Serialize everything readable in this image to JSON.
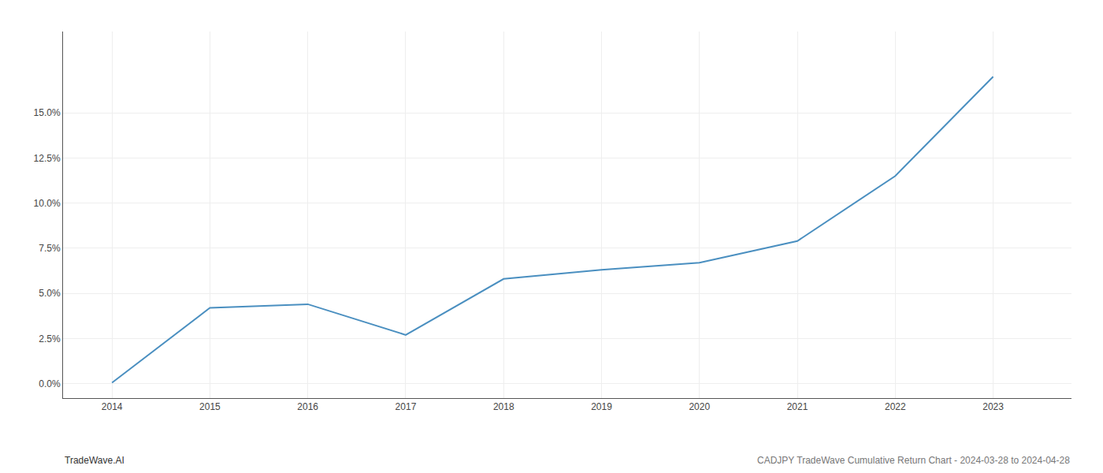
{
  "chart_data": {
    "type": "line",
    "x": [
      2014,
      2015,
      2016,
      2017,
      2018,
      2019,
      2020,
      2021,
      2022,
      2023
    ],
    "values": [
      0.05,
      4.2,
      4.4,
      2.7,
      5.8,
      6.3,
      6.7,
      7.9,
      11.5,
      17.0
    ],
    "color": "#4a8fc0",
    "xlim": [
      2013.5,
      2023.8
    ],
    "xticks": [
      2014,
      2015,
      2016,
      2017,
      2018,
      2019,
      2020,
      2021,
      2022,
      2023
    ],
    "ylim": [
      -0.8,
      19.5
    ],
    "yticks": [
      {
        "value": 0.0,
        "label": "0.0%"
      },
      {
        "value": 2.5,
        "label": "2.5%"
      },
      {
        "value": 5.0,
        "label": "5.0%"
      },
      {
        "value": 7.5,
        "label": "7.5%"
      },
      {
        "value": 10.0,
        "label": "10.0%"
      },
      {
        "value": 12.5,
        "label": "12.5%"
      },
      {
        "value": 15.0,
        "label": "15.0%"
      }
    ],
    "grid": true,
    "annotations": [
      "TradeWave.AI",
      "CADJPY TradeWave Cumulative Return Chart - 2024-03-28 to 2024-04-28"
    ]
  }
}
